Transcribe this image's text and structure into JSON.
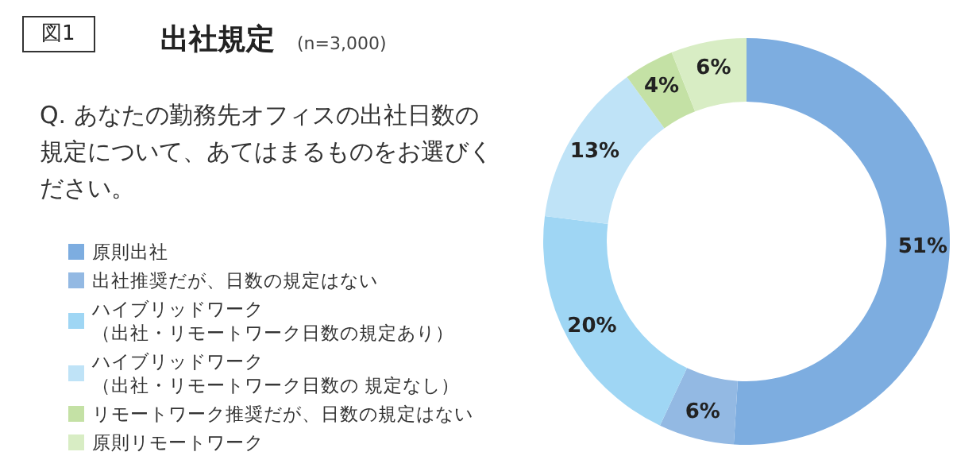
{
  "chart_data": {
    "type": "donut",
    "title": "出社規定",
    "subtitle": "(n=3,000)",
    "annotations": [
      "図1",
      "Q. あなたの勤務先オフィスの出社日数の規定について、あてはまるものをお選びください。"
    ],
    "categories": [
      "原則出社",
      "出社推奨だが、日数の規定はない",
      "ハイブリッドワーク（出社・リモートワーク日数の規定あり）",
      "ハイブリッドワーク（出社・リモートワーク日数の 規定なし）",
      "リモートワーク推奨だが、日数の規定はない",
      "原則リモートワーク"
    ],
    "values": [
      51,
      6,
      20,
      13,
      4,
      6
    ],
    "value_labels": [
      "51%",
      "6%",
      "20%",
      "13%",
      "4%",
      "6%"
    ],
    "colors": [
      "#7dade0",
      "#93b9e3",
      "#9fd6f4",
      "#bfe3f7",
      "#c4e1a5",
      "#d8edc4"
    ],
    "legend": "bottom left"
  }
}
